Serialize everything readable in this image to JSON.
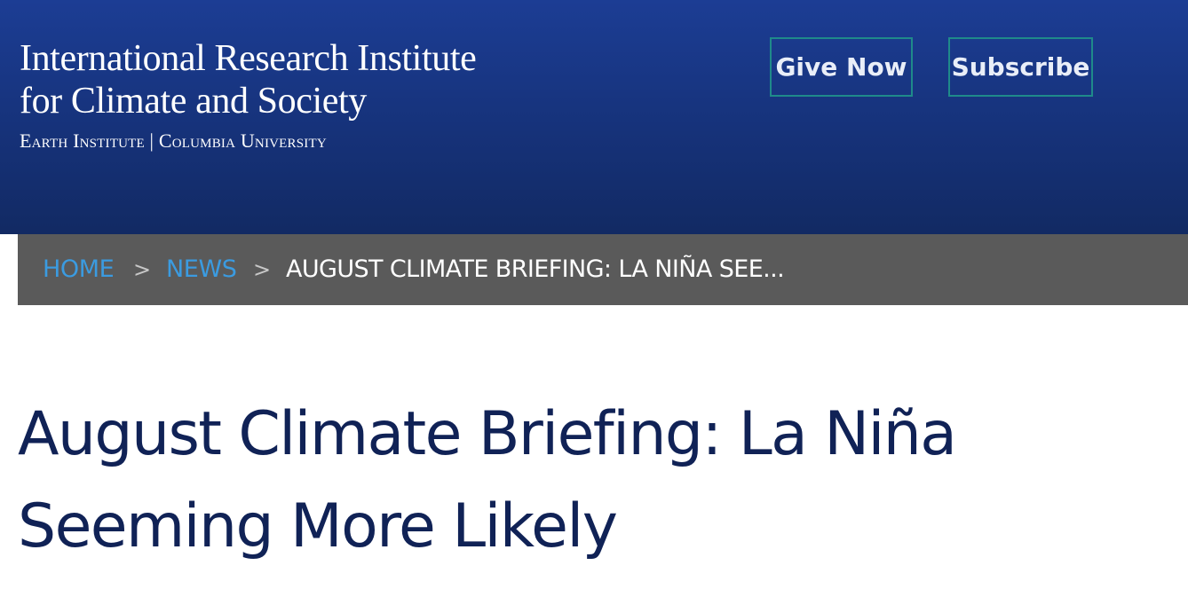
{
  "header": {
    "logo": {
      "line1": "International Research Institute",
      "line2": "for Climate and Society",
      "line3": "Earth Institute | Columbia University"
    },
    "buttons": {
      "give_now": "Give Now",
      "subscribe": "Subscribe"
    },
    "colors": {
      "background": "#1a3a8c",
      "button_border": "#1f8a8a"
    }
  },
  "breadcrumb": {
    "items": [
      {
        "label": "HOME"
      },
      {
        "label": "NEWS"
      }
    ],
    "separator": ">",
    "current": "AUGUST CLIMATE BRIEFING: LA NIÑA SEE..."
  },
  "article": {
    "title": "August Climate Briefing: La Niña Seeming More Likely"
  }
}
